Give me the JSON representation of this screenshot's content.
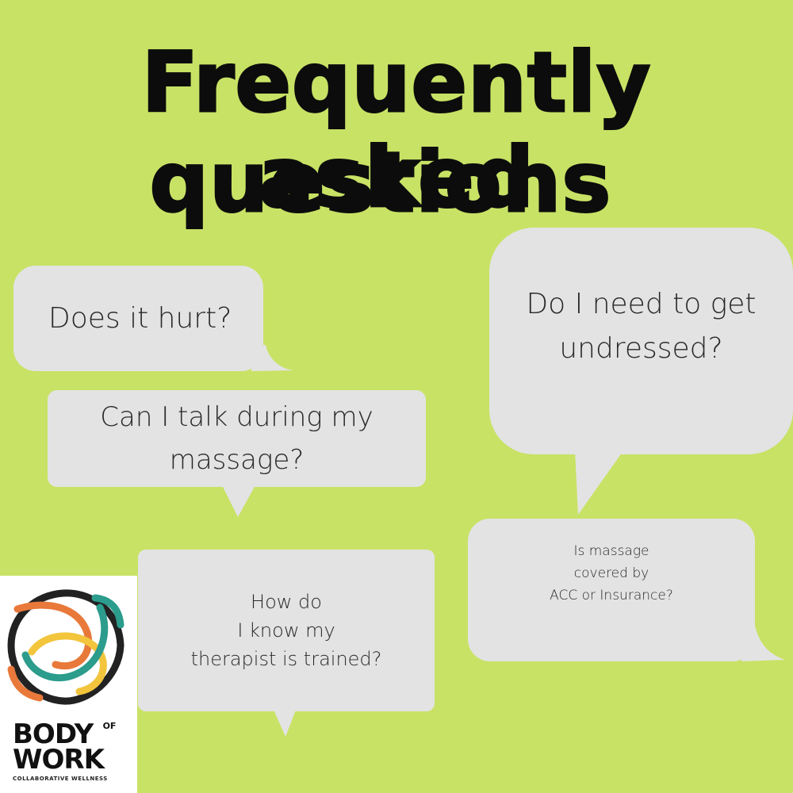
{
  "title": {
    "line1": "Frequently asked",
    "line2": "questions"
  },
  "bubble_color": "#e3e3e3",
  "background_color": "#c8e265",
  "questions": [
    {
      "lines": [
        "Does it hurt?"
      ]
    },
    {
      "lines": [
        "Can I talk during my",
        "massage?"
      ]
    },
    {
      "lines": [
        "How do",
        "I know my",
        "therapist is trained?"
      ]
    },
    {
      "lines": [
        "Do I need to get",
        "undressed?"
      ]
    },
    {
      "lines": [
        "Is massage",
        "covered by",
        "ACC or Insurance?"
      ]
    }
  ],
  "brand": {
    "body": "BODY",
    "of": "OF",
    "work": "WORK",
    "tagline": "COLLABORATIVE WELLNESS",
    "logo_colors": [
      "#e8793a",
      "#f2c53d",
      "#2c9c8c",
      "#222222"
    ]
  }
}
